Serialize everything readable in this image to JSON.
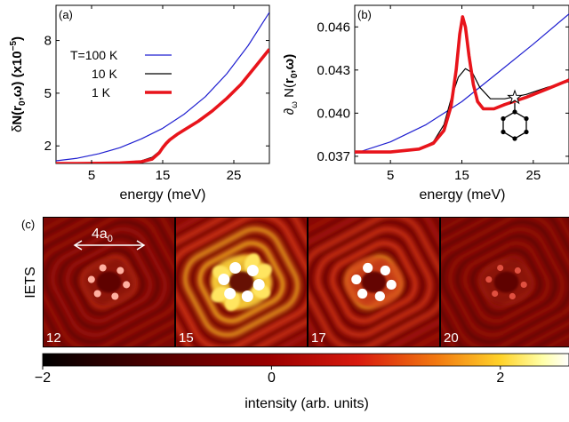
{
  "panels": {
    "a": {
      "tag": "(a)"
    },
    "b": {
      "tag": "(b)"
    },
    "c": {
      "tag": "(c)"
    }
  },
  "chart_data": [
    {
      "type": "line",
      "panel": "(a)",
      "xlabel": "energy (meV)",
      "ylabel": "δN(r0,ω) (x10^-5)",
      "xlim": [
        0,
        30
      ],
      "ylim": [
        1,
        10
      ],
      "xticks": [
        5,
        15,
        25
      ],
      "yticks": [
        2,
        5,
        8
      ],
      "grid": false,
      "legend": "top-left",
      "series": [
        {
          "name": "T=100 K",
          "color": "#1f1fd0",
          "x": [
            0,
            3,
            6,
            9,
            12,
            15,
            18,
            21,
            24,
            27,
            30
          ],
          "y": [
            1.15,
            1.3,
            1.55,
            1.9,
            2.4,
            3.0,
            3.8,
            4.8,
            6.1,
            7.7,
            9.6
          ]
        },
        {
          "name": "10 K",
          "color": "#000000",
          "x": [
            0,
            3,
            6,
            9,
            12,
            13.5,
            15,
            16,
            17,
            18,
            20,
            22,
            24,
            26,
            28,
            30
          ],
          "y": [
            1.0,
            1.0,
            1.02,
            1.05,
            1.15,
            1.35,
            1.85,
            2.3,
            2.65,
            2.9,
            3.4,
            4.0,
            4.7,
            5.5,
            6.5,
            7.5
          ]
        },
        {
          "name": "1 K",
          "color": "#e8141b",
          "x": [
            0,
            3,
            6,
            9,
            12,
            13.5,
            14.5,
            15,
            15.5,
            16,
            17,
            18,
            20,
            22,
            24,
            26,
            28,
            30
          ],
          "y": [
            1.0,
            1.0,
            1.01,
            1.03,
            1.1,
            1.25,
            1.6,
            1.9,
            2.15,
            2.35,
            2.65,
            2.9,
            3.4,
            4.0,
            4.7,
            5.5,
            6.5,
            7.5
          ]
        }
      ]
    },
    {
      "type": "line",
      "panel": "(b)",
      "xlabel": "energy (meV)",
      "ylabel": "∂ω N(r0,ω)",
      "xlim": [
        0,
        30
      ],
      "ylim": [
        0.0365,
        0.0475
      ],
      "xticks": [
        5,
        15,
        25
      ],
      "yticks": [
        0.037,
        0.04,
        0.043,
        0.046
      ],
      "ytick_labels": [
        "0.037",
        "0.040",
        "0.043",
        "0.046"
      ],
      "grid": false,
      "series": [
        {
          "name": "T=100 K",
          "color": "#1f1fd0",
          "x": [
            0,
            5,
            10,
            15,
            20,
            25,
            30
          ],
          "y": [
            0.0372,
            0.038,
            0.0392,
            0.0408,
            0.0428,
            0.0448,
            0.0469
          ]
        },
        {
          "name": "10 K",
          "color": "#000000",
          "x": [
            0,
            5,
            9,
            11,
            12.5,
            13.5,
            14.5,
            15.5,
            16.5,
            17.5,
            19,
            21,
            24,
            27,
            30
          ],
          "y": [
            0.0373,
            0.0373,
            0.0375,
            0.038,
            0.0392,
            0.041,
            0.0425,
            0.0431,
            0.0428,
            0.0418,
            0.041,
            0.041,
            0.0413,
            0.0418,
            0.0422
          ]
        },
        {
          "name": "1 K",
          "color": "#e8141b",
          "x": [
            0,
            5,
            9,
            11,
            12.5,
            13.5,
            14.2,
            14.7,
            15.1,
            15.5,
            16,
            16.6,
            17.2,
            18,
            19.5,
            21,
            24,
            27,
            30
          ],
          "y": [
            0.0373,
            0.0373,
            0.0375,
            0.0379,
            0.0388,
            0.0405,
            0.043,
            0.0455,
            0.0467,
            0.046,
            0.044,
            0.042,
            0.0408,
            0.0403,
            0.0403,
            0.0406,
            0.0411,
            0.0417,
            0.0423
          ]
        }
      ]
    },
    {
      "type": "heatmap",
      "panel": "(c)",
      "ylabel": "IETS",
      "scale_bar_label": "4a0",
      "frames": [
        {
          "energy_label": "12",
          "intensity": 0.45
        },
        {
          "energy_label": "15",
          "intensity": 1.0
        },
        {
          "energy_label": "17",
          "intensity": 0.8
        },
        {
          "energy_label": "20",
          "intensity": 0.35
        }
      ],
      "colorbar": {
        "range": [
          -2,
          2.6
        ],
        "ticks": [
          -2,
          0,
          2
        ],
        "tick_labels": [
          "−2",
          "0",
          "2"
        ],
        "label": "intensity (arb. units)",
        "colors": [
          "#000000",
          "#6a0000",
          "#c81010",
          "#f06010",
          "#ffd020",
          "#ffffa0",
          "#ffffff"
        ]
      }
    }
  ]
}
